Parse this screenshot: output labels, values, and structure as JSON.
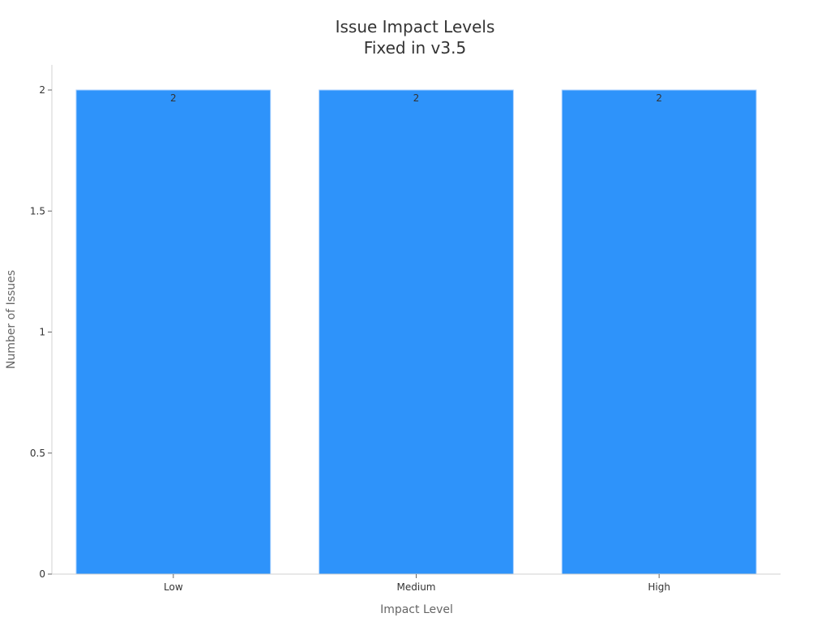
{
  "chart_data": {
    "type": "bar",
    "title": "Issue Impact Levels",
    "subtitle": "Fixed in v3.5",
    "xlabel": "Impact Level",
    "ylabel": "Number of Issues",
    "categories": [
      "Low",
      "Medium",
      "High"
    ],
    "values": [
      2,
      2,
      2
    ],
    "data_labels": [
      "2",
      "2",
      "2"
    ],
    "ylim": [
      0,
      2
    ],
    "yticks": [
      0,
      0.5,
      1,
      1.5,
      2
    ],
    "ytick_labels": [
      "0",
      "0.5",
      "1",
      "1.5",
      "2"
    ],
    "grid": false,
    "legend": "none",
    "colors": {
      "bar": "#2e93fa",
      "bar_edge": "#a9d0ff",
      "axis": "#d0d0d0",
      "text": "#333333",
      "label": "#666666"
    }
  }
}
